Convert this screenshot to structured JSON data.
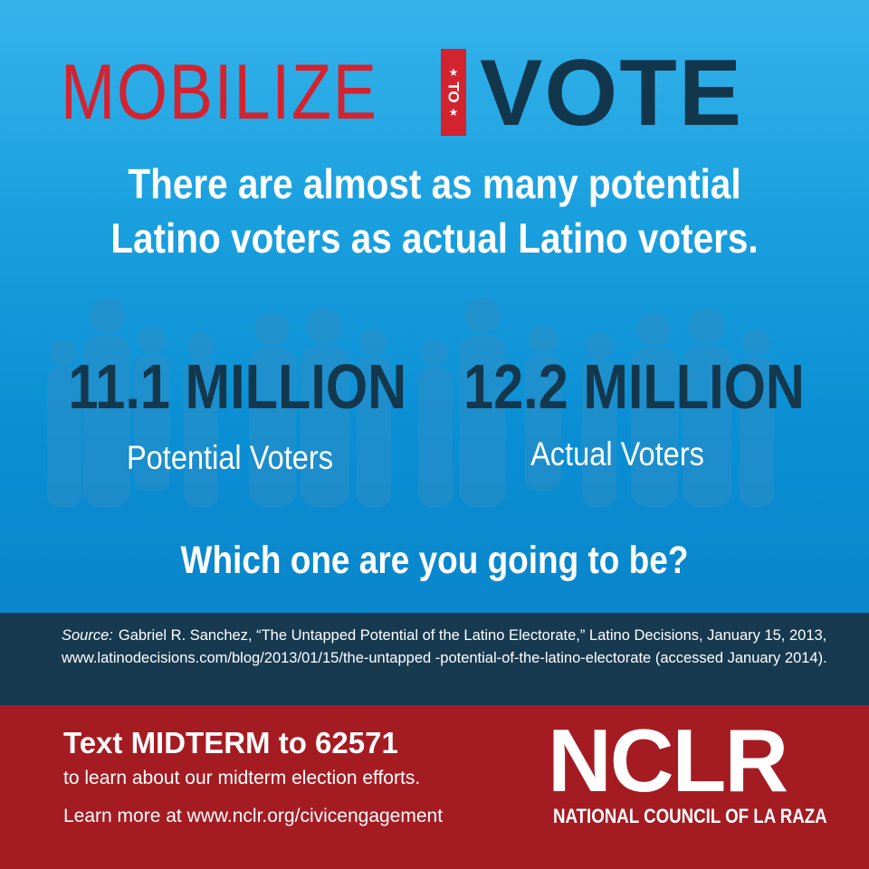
{
  "headline": {
    "mobilize": "MOBILIZE",
    "to": "TO",
    "vote": "VOTE"
  },
  "subheading": {
    "line1": "There are almost as many potential",
    "line2": "Latino voters as actual Latino voters."
  },
  "stats": [
    {
      "number": "11.1 MILLION",
      "label": "Potential Voters"
    },
    {
      "number": "12.2 MILLION",
      "label": "Actual Voters"
    }
  ],
  "question": "Which one are you going to be?",
  "source": {
    "label": "Source:",
    "text": "Gabriel R. Sanchez, “The Untapped Potential of the Latino Electorate,” Latino Decisions, January 15, 2013, www.latinodecisions.com/blog/2013/01/15/the-untapped -potential-of-the-latino-electorate (accessed January 2014)."
  },
  "cta": {
    "text_line": "Text MIDTERM to 62571",
    "sub_line": "to learn about our midterm election efforts.",
    "learn_line": "Learn more at www.nclr.org/civicengagement"
  },
  "logo": {
    "name": "NCLR",
    "full_name": "NATIONAL COUNCIL OF LA RAZA"
  },
  "colors": {
    "sky_blue": "#1aa0df",
    "red": "#d3232f",
    "navy": "#12374d",
    "dark_band": "#173a51",
    "bottom_red": "#a51b22"
  }
}
